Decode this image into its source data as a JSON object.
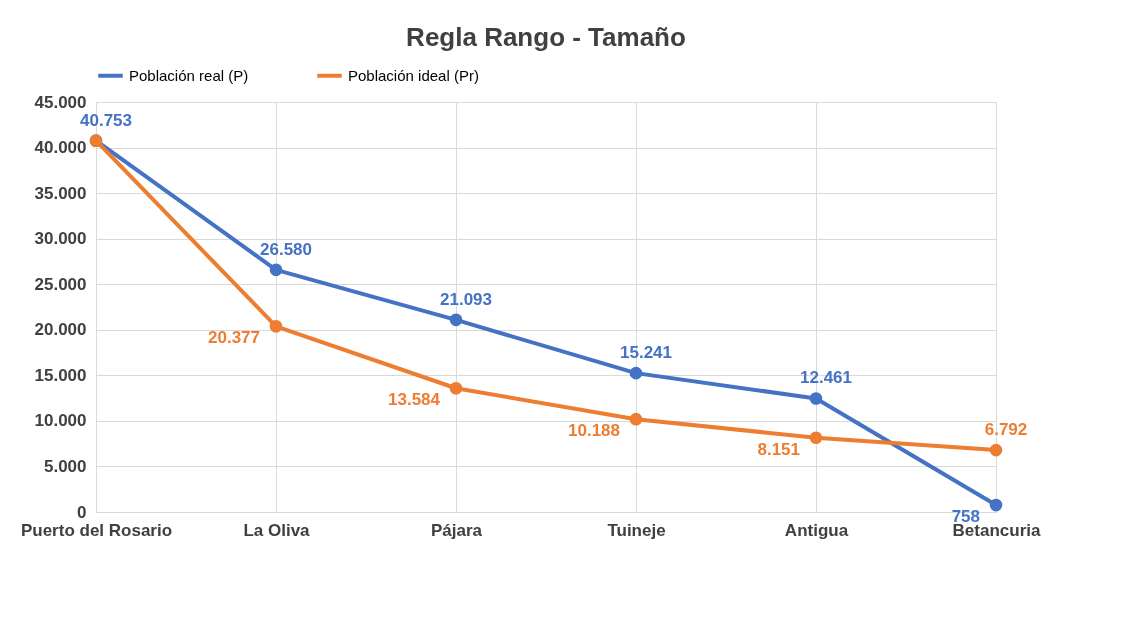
{
  "chart_data": {
    "type": "line",
    "title": "Regla Rango - Tamaño",
    "categories": [
      "Puerto del Rosario",
      "La Oliva",
      "Pájara",
      "Tuineje",
      "Antigua",
      "Betancuria"
    ],
    "series": [
      {
        "name": "Población real (P)",
        "color": "#4472c4",
        "values": [
          40753,
          26580,
          21093,
          15241,
          12461,
          758
        ],
        "value_labels": [
          "40.753",
          "26.580",
          "21.093",
          "15.241",
          "12.461",
          "758"
        ]
      },
      {
        "name": "Población ideal (Pr)",
        "color": "#ed7d31",
        "values": [
          40753,
          20377,
          13584,
          10188,
          8151,
          6792
        ],
        "value_labels": [
          null,
          "20.377",
          "13.584",
          "10.188",
          "8.151",
          "6.792"
        ]
      }
    ],
    "ylim": [
      0,
      45000
    ],
    "yticks": [
      {
        "value": 0,
        "label": "0"
      },
      {
        "value": 5000,
        "label": "5.000"
      },
      {
        "value": 10000,
        "label": "10.000"
      },
      {
        "value": 15000,
        "label": "15.000"
      },
      {
        "value": 20000,
        "label": "20.000"
      },
      {
        "value": 25000,
        "label": "25.000"
      },
      {
        "value": 30000,
        "label": "30.000"
      },
      {
        "value": 35000,
        "label": "35.000"
      },
      {
        "value": 40000,
        "label": "40.000"
      },
      {
        "value": 45000,
        "label": "45.000"
      }
    ],
    "grid": true,
    "legend": "top",
    "marker": "circle",
    "line_style": "solid"
  }
}
